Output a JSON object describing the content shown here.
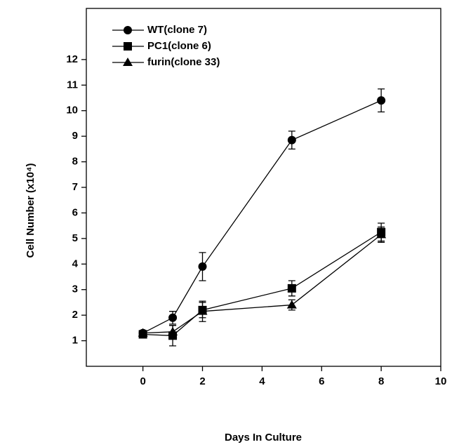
{
  "chart_data": {
    "type": "line",
    "xlabel": "Days In Culture",
    "ylabel": "Cell Number (x10⁴)",
    "xlim": [
      -1.9,
      10
    ],
    "xticks": [
      0,
      2,
      4,
      6,
      8,
      10
    ],
    "ylim": [
      0,
      14
    ],
    "yticks": [
      1,
      2,
      3,
      4,
      5,
      6,
      7,
      8,
      9,
      10,
      11,
      12
    ],
    "legend": "upper left",
    "x": [
      0,
      1,
      2,
      5,
      8
    ],
    "series": [
      {
        "name": "WT(clone 7)",
        "color": "#000000",
        "marker": "circle",
        "values": [
          1.3,
          1.9,
          3.9,
          8.85,
          10.4
        ],
        "errors": [
          0.1,
          0.25,
          0.55,
          0.35,
          0.45
        ]
      },
      {
        "name": "PC1(clone 6)",
        "color": "#000000",
        "marker": "square",
        "values": [
          1.25,
          1.2,
          2.2,
          3.05,
          5.25
        ],
        "errors": [
          0.1,
          0.4,
          0.3,
          0.3,
          0.35
        ]
      },
      {
        "name": "furin(clone 33)",
        "color": "#000000",
        "marker": "triangle",
        "values": [
          1.3,
          1.35,
          2.15,
          2.4,
          5.15
        ],
        "errors": [
          0.1,
          0.25,
          0.4,
          0.2,
          0.3
        ]
      }
    ]
  }
}
